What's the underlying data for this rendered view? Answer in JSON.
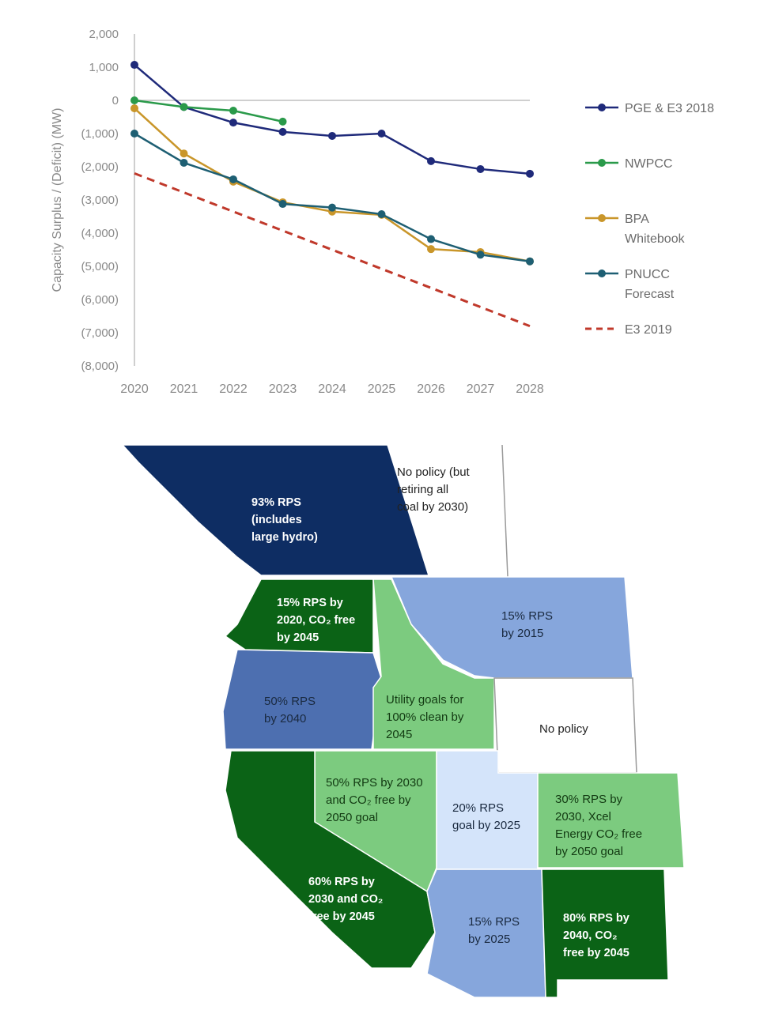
{
  "chart_data": {
    "type": "line",
    "title": "",
    "xlabel": "",
    "ylabel": "Capacity Surplus / (Deficit) (MW)",
    "x": [
      2020,
      2021,
      2022,
      2023,
      2024,
      2025,
      2026,
      2027,
      2028
    ],
    "ylim": [
      -8000,
      2000
    ],
    "yticks": [
      2000,
      1000,
      0,
      -1000,
      -2000,
      -3000,
      -4000,
      -5000,
      -6000,
      -7000,
      -8000
    ],
    "ytick_labels": [
      "2,000",
      "1,000",
      "0",
      "(1,000)",
      "(2,000)",
      "(3,000)",
      "(4,000)",
      "(5,000)",
      "(6,000)",
      "(7,000)",
      "(8,000)"
    ],
    "grid": false,
    "legend_placement": "right",
    "series": [
      {
        "name": "PGE & E3 2018",
        "name_lines": [
          "PGE & E3 2018"
        ],
        "color": "#1f2a7a",
        "dashed": false,
        "markers": true,
        "values": [
          1070,
          -200,
          -670,
          -950,
          -1070,
          -1000,
          -1830,
          -2070,
          -2210
        ]
      },
      {
        "name": "NWPCC",
        "name_lines": [
          "NWPCC"
        ],
        "color": "#2a9a4a",
        "dashed": false,
        "markers": true,
        "values": [
          0,
          -200,
          -310,
          -640,
          null,
          null,
          null,
          null,
          null
        ]
      },
      {
        "name": "BPA Whitebook",
        "name_lines": [
          "BPA",
          "Whitebook"
        ],
        "color": "#c9962a",
        "dashed": false,
        "markers": true,
        "values": [
          -240,
          -1600,
          -2450,
          -3070,
          -3350,
          -3450,
          -4480,
          -4570,
          -4850
        ]
      },
      {
        "name": "PNUCC Forecast",
        "name_lines": [
          "PNUCC",
          "Forecast"
        ],
        "color": "#1e5f73",
        "dashed": false,
        "markers": true,
        "values": [
          -1000,
          -1880,
          -2380,
          -3120,
          -3230,
          -3430,
          -4180,
          -4650,
          -4850
        ]
      },
      {
        "name": "E3 2019",
        "name_lines": [
          "E3 2019"
        ],
        "color": "#c0392b",
        "dashed": true,
        "markers": false,
        "values": [
          -2200,
          -2775,
          -3350,
          -3925,
          -4500,
          -5075,
          -5650,
          -6225,
          -6800
        ]
      }
    ]
  },
  "map": {
    "regions": [
      {
        "id": "british-columbia",
        "color": "#0e2d63",
        "text_color": "#ffffff",
        "lines": [
          "93% RPS",
          "(includes",
          "large hydro)"
        ]
      },
      {
        "id": "alberta",
        "color": "#ffffff",
        "text_color": "#222222",
        "lines": [
          "No policy (but",
          "retiring all",
          "coal by 2030)"
        ]
      },
      {
        "id": "washington",
        "color": "#0b6316",
        "text_color": "#ffffff",
        "lines": [
          "15% RPS by",
          "2020, CO₂ free",
          "by 2045"
        ]
      },
      {
        "id": "montana",
        "color": "#86a6dc",
        "text_color": "#1a2a40",
        "lines": [
          "15% RPS",
          "by 2015"
        ]
      },
      {
        "id": "oregon",
        "color": "#4d6fb0",
        "text_color": "#1a2a40",
        "lines": [
          "50% RPS",
          "by 2040"
        ]
      },
      {
        "id": "idaho",
        "color": "#7ccb7f",
        "text_color": "#123a12",
        "lines": [
          "Utility goals for",
          "100% clean by",
          "2045"
        ]
      },
      {
        "id": "wyoming",
        "color": "#ffffff",
        "text_color": "#222222",
        "lines": [
          "No policy"
        ]
      },
      {
        "id": "nevada",
        "color": "#7ccb7f",
        "text_color": "#123a12",
        "lines": [
          "50% RPS by 2030",
          "and CO₂ free by",
          "2050 goal"
        ]
      },
      {
        "id": "utah",
        "color": "#d4e4fa",
        "text_color": "#1a2a40",
        "lines": [
          "20% RPS",
          "goal by 2025"
        ]
      },
      {
        "id": "colorado",
        "color": "#7ccb7f",
        "text_color": "#123a12",
        "lines": [
          "30% RPS by",
          "2030, Xcel",
          "Energy CO₂ free",
          "by 2050 goal"
        ]
      },
      {
        "id": "california",
        "color": "#0b6316",
        "text_color": "#ffffff",
        "lines": [
          "60% RPS by",
          "2030 and CO₂",
          "free by 2045"
        ]
      },
      {
        "id": "arizona",
        "color": "#86a6dc",
        "text_color": "#1a2a40",
        "lines": [
          "15% RPS",
          "by 2025"
        ]
      },
      {
        "id": "new-mexico",
        "color": "#0b6316",
        "text_color": "#ffffff",
        "lines": [
          "80% RPS by",
          "2040, CO₂",
          "free by 2045"
        ]
      }
    ]
  }
}
